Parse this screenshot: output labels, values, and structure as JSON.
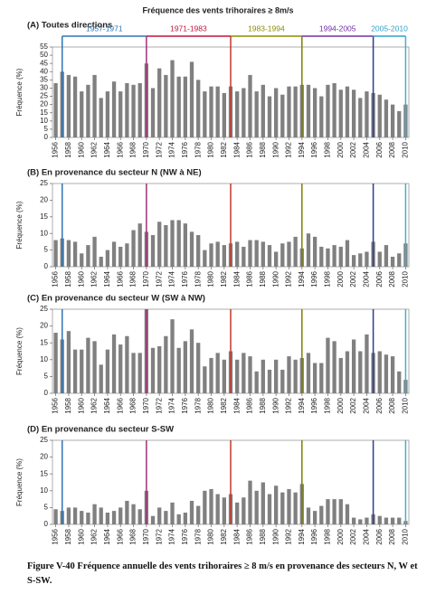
{
  "title": "Fréquence des vents trihoraires ≥ 8m/s",
  "caption": "Figure V-40  Fréquence annuelle des vents trihoraires ≥ 8 m/s en provenance des secteurs N, W et S-SW.",
  "chart_data": [
    {
      "type": "bar",
      "title": "(A) Toutes directions",
      "y_label": "Fréquence (%)",
      "color": "#808080",
      "x": [
        1956,
        1957,
        1958,
        1959,
        1960,
        1961,
        1962,
        1963,
        1964,
        1965,
        1966,
        1967,
        1968,
        1969,
        1970,
        1971,
        1972,
        1973,
        1974,
        1975,
        1976,
        1977,
        1978,
        1979,
        1980,
        1981,
        1982,
        1983,
        1984,
        1985,
        1986,
        1987,
        1988,
        1989,
        1990,
        1991,
        1992,
        1993,
        1994,
        1995,
        1996,
        1997,
        1998,
        1999,
        2000,
        2001,
        2002,
        2003,
        2004,
        2005,
        2006,
        2007,
        2008,
        2009,
        2010
      ],
      "values": [
        33,
        40,
        38,
        37,
        28,
        32,
        38,
        24,
        28,
        34,
        28,
        33,
        32,
        33,
        45,
        30,
        42,
        38,
        47,
        37,
        37,
        46,
        35,
        28,
        31,
        31,
        27,
        31,
        28,
        30,
        38,
        28,
        32,
        25,
        30,
        26,
        31,
        31,
        32,
        32,
        30,
        25,
        32,
        33,
        29,
        31,
        29,
        24,
        28,
        27,
        26,
        23,
        20,
        16,
        20
      ],
      "xlim": [
        1955.5,
        2010.5
      ],
      "xticks": [
        1956,
        1958,
        1960,
        1962,
        1964,
        1966,
        1968,
        1970,
        1972,
        1974,
        1976,
        1978,
        1980,
        1982,
        1984,
        1986,
        1988,
        1990,
        1992,
        1994,
        1996,
        1998,
        2000,
        2002,
        2004,
        2006,
        2008,
        2010
      ],
      "ylim": [
        0,
        55
      ],
      "yticks": [
        0,
        5,
        10,
        15,
        20,
        25,
        30,
        35,
        40,
        45,
        50,
        55
      ],
      "markers": [
        {
          "year": 1957,
          "color": "#2e75b6"
        },
        {
          "year": 1970,
          "color": "#a0307a"
        },
        {
          "year": 1983,
          "color": "#c0392b"
        },
        {
          "year": 1994,
          "color": "#7f7f00"
        },
        {
          "year": 2005,
          "color": "#2f3b8f"
        },
        {
          "year": 2010,
          "color": "#4bacc6"
        }
      ],
      "periods": [
        {
          "label": "1957-1971",
          "color": "#2e75b6"
        },
        {
          "label": "1971-1983",
          "color": "#c0143c"
        },
        {
          "label": "1983-1994",
          "color": "#8c8c00"
        },
        {
          "label": "1994-2005",
          "color": "#7030a0"
        },
        {
          "label": "2005-2010",
          "color": "#31a0c8"
        }
      ]
    },
    {
      "type": "bar",
      "title": "(B) En provenance du secteur N (NW à NE)",
      "y_label": "Fréquence (%)",
      "color": "#808080",
      "x": [
        1956,
        1957,
        1958,
        1959,
        1960,
        1961,
        1962,
        1963,
        1964,
        1965,
        1966,
        1967,
        1968,
        1969,
        1970,
        1971,
        1972,
        1973,
        1974,
        1975,
        1976,
        1977,
        1978,
        1979,
        1980,
        1981,
        1982,
        1983,
        1984,
        1985,
        1986,
        1987,
        1988,
        1989,
        1990,
        1991,
        1992,
        1993,
        1994,
        1995,
        1996,
        1997,
        1998,
        1999,
        2000,
        2001,
        2002,
        2003,
        2004,
        2005,
        2006,
        2007,
        2008,
        2009,
        2010
      ],
      "values": [
        8,
        8.5,
        8,
        7.5,
        4,
        6.5,
        9,
        3,
        5,
        7.5,
        6,
        7,
        11,
        13,
        10.5,
        9.5,
        13.5,
        12.5,
        14,
        14,
        13,
        10.5,
        9.5,
        5,
        7,
        7.5,
        6.5,
        7,
        7.5,
        6,
        8,
        8,
        7.5,
        6.5,
        4.5,
        7,
        7.5,
        9,
        5.5,
        10,
        9,
        6,
        5.5,
        6.5,
        6,
        8,
        3.5,
        4,
        4.5,
        7.5,
        4.5,
        6.5,
        3,
        4,
        7
      ],
      "xlim": [
        1955.5,
        2010.5
      ],
      "xticks": [
        1956,
        1958,
        1960,
        1962,
        1964,
        1966,
        1968,
        1970,
        1972,
        1974,
        1976,
        1978,
        1980,
        1982,
        1984,
        1986,
        1988,
        1990,
        1992,
        1994,
        1996,
        1998,
        2000,
        2002,
        2004,
        2006,
        2008,
        2010
      ],
      "ylim": [
        0,
        25
      ],
      "yticks": [
        0,
        5,
        10,
        15,
        20,
        25
      ],
      "markers": [
        {
          "year": 1957,
          "color": "#2e75b6"
        },
        {
          "year": 1970,
          "color": "#a0307a"
        },
        {
          "year": 1983,
          "color": "#c0392b"
        },
        {
          "year": 1994,
          "color": "#7f7f00"
        },
        {
          "year": 2005,
          "color": "#2f3b8f"
        },
        {
          "year": 2010,
          "color": "#4bacc6"
        }
      ]
    },
    {
      "type": "bar",
      "title": "(C) En provenance du secteur W (SW à NW)",
      "y_label": "Fréquence (%)",
      "color": "#808080",
      "x": [
        1956,
        1957,
        1958,
        1959,
        1960,
        1961,
        1962,
        1963,
        1964,
        1965,
        1966,
        1967,
        1968,
        1969,
        1970,
        1971,
        1972,
        1973,
        1974,
        1975,
        1976,
        1977,
        1978,
        1979,
        1980,
        1981,
        1982,
        1983,
        1984,
        1985,
        1986,
        1987,
        1988,
        1989,
        1990,
        1991,
        1992,
        1993,
        1994,
        1995,
        1996,
        1997,
        1998,
        1999,
        2000,
        2001,
        2002,
        2003,
        2004,
        2005,
        2006,
        2007,
        2008,
        2009,
        2010
      ],
      "values": [
        18,
        16,
        18.5,
        13,
        13,
        16.5,
        15.5,
        8.5,
        13,
        17.5,
        14.5,
        17,
        12,
        12,
        25,
        13.5,
        14,
        17,
        22,
        13.5,
        15.5,
        19,
        15,
        8,
        10.5,
        12,
        10,
        12.5,
        10,
        12,
        11,
        6.5,
        10,
        7,
        10,
        7,
        11,
        10,
        10.5,
        12,
        9,
        9,
        16.5,
        15.5,
        10.5,
        12.5,
        16,
        12.5,
        17.5,
        12,
        12.5,
        11.5,
        11,
        6.5,
        4
      ],
      "xlim": [
        1955.5,
        2010.5
      ],
      "xticks": [
        1956,
        1958,
        1960,
        1962,
        1964,
        1966,
        1968,
        1970,
        1972,
        1974,
        1976,
        1978,
        1980,
        1982,
        1984,
        1986,
        1988,
        1990,
        1992,
        1994,
        1996,
        1998,
        2000,
        2002,
        2004,
        2006,
        2008,
        2010
      ],
      "ylim": [
        0,
        25
      ],
      "yticks": [
        0,
        5,
        10,
        15,
        20,
        25
      ],
      "markers": [
        {
          "year": 1957,
          "color": "#2e75b6"
        },
        {
          "year": 1970,
          "color": "#a0307a"
        },
        {
          "year": 1983,
          "color": "#c0392b"
        },
        {
          "year": 1994,
          "color": "#7f7f00"
        },
        {
          "year": 2005,
          "color": "#2f3b8f"
        },
        {
          "year": 2010,
          "color": "#4bacc6"
        }
      ]
    },
    {
      "type": "bar",
      "title": "(D) En provenance du secteur S-SW",
      "y_label": "Fréquence (%)",
      "color": "#808080",
      "x": [
        1956,
        1957,
        1958,
        1959,
        1960,
        1961,
        1962,
        1963,
        1964,
        1965,
        1966,
        1967,
        1968,
        1969,
        1970,
        1971,
        1972,
        1973,
        1974,
        1975,
        1976,
        1977,
        1978,
        1979,
        1980,
        1981,
        1982,
        1983,
        1984,
        1985,
        1986,
        1987,
        1988,
        1989,
        1990,
        1991,
        1992,
        1993,
        1994,
        1995,
        1996,
        1997,
        1998,
        1999,
        2000,
        2001,
        2002,
        2003,
        2004,
        2005,
        2006,
        2007,
        2008,
        2009,
        2010
      ],
      "values": [
        4.5,
        4,
        5,
        5,
        4,
        3.5,
        6,
        5,
        3.5,
        4,
        5,
        7,
        6,
        4.5,
        10,
        2.5,
        5,
        4,
        6.5,
        3,
        3.5,
        7,
        5.5,
        10,
        10.5,
        9,
        8,
        9,
        6.5,
        8,
        13,
        10,
        12.5,
        9,
        11.5,
        9.5,
        10.5,
        9.5,
        12,
        5,
        4,
        5.5,
        7.5,
        7.5,
        7.5,
        6,
        2,
        1.5,
        2,
        3,
        2.5,
        2,
        2,
        2,
        1
      ],
      "xlim": [
        1955.5,
        2010.5
      ],
      "xticks": [
        1956,
        1958,
        1960,
        1962,
        1964,
        1966,
        1968,
        1970,
        1972,
        1974,
        1976,
        1978,
        1980,
        1982,
        1984,
        1986,
        1988,
        1990,
        1992,
        1994,
        1996,
        1998,
        2000,
        2002,
        2004,
        2006,
        2008,
        2010
      ],
      "ylim": [
        0,
        25
      ],
      "yticks": [
        0,
        5,
        10,
        15,
        20,
        25
      ],
      "markers": [
        {
          "year": 1957,
          "color": "#2e75b6"
        },
        {
          "year": 1970,
          "color": "#a0307a"
        },
        {
          "year": 1983,
          "color": "#c0392b"
        },
        {
          "year": 1994,
          "color": "#7f7f00"
        },
        {
          "year": 2005,
          "color": "#2f3b8f"
        },
        {
          "year": 2010,
          "color": "#4bacc6"
        }
      ]
    }
  ]
}
